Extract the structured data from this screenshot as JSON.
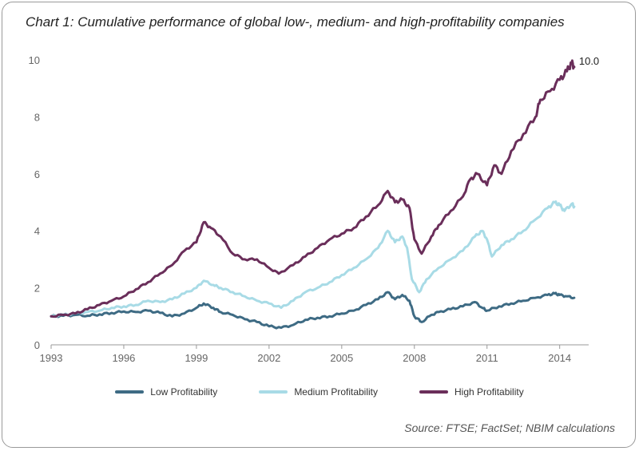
{
  "title": "Chart 1: Cumulative performance of global low-, medium- and high-profitability companies",
  "source": "Source: FTSE; FactSet; NBIM calculations",
  "end_label": "10.0",
  "chart_data": {
    "type": "line",
    "title": "Chart 1: Cumulative performance of global low-, medium- and high-profitability companies",
    "xlabel": "",
    "ylabel": "",
    "xlim": [
      1993,
      2015
    ],
    "ylim": [
      0,
      10
    ],
    "x_ticks": [
      "1993",
      "1996",
      "1999",
      "2002",
      "2005",
      "2008",
      "2011",
      "2014"
    ],
    "y_ticks": [
      "0",
      "2",
      "4",
      "6",
      "8",
      "10"
    ],
    "grid": false,
    "legend_position": "bottom",
    "series": [
      {
        "name": "Low Profitability",
        "color": "#3e6b84",
        "points": [
          [
            1993.0,
            1.0
          ],
          [
            1993.5,
            1.02
          ],
          [
            1994.0,
            1.05
          ],
          [
            1994.5,
            1.02
          ],
          [
            1995.0,
            1.07
          ],
          [
            1995.5,
            1.12
          ],
          [
            1996.0,
            1.17
          ],
          [
            1996.5,
            1.15
          ],
          [
            1997.0,
            1.2
          ],
          [
            1997.5,
            1.12
          ],
          [
            1998.0,
            1.0
          ],
          [
            1998.5,
            1.1
          ],
          [
            1999.0,
            1.3
          ],
          [
            1999.3,
            1.45
          ],
          [
            1999.7,
            1.3
          ],
          [
            2000.0,
            1.15
          ],
          [
            2000.5,
            1.05
          ],
          [
            2001.0,
            0.9
          ],
          [
            2001.5,
            0.8
          ],
          [
            2002.0,
            0.65
          ],
          [
            2002.5,
            0.6
          ],
          [
            2003.0,
            0.7
          ],
          [
            2003.5,
            0.88
          ],
          [
            2004.0,
            0.95
          ],
          [
            2004.5,
            1.0
          ],
          [
            2005.0,
            1.1
          ],
          [
            2005.5,
            1.2
          ],
          [
            2006.0,
            1.4
          ],
          [
            2006.5,
            1.6
          ],
          [
            2006.9,
            1.85
          ],
          [
            2007.2,
            1.6
          ],
          [
            2007.5,
            1.75
          ],
          [
            2007.8,
            1.55
          ],
          [
            2008.0,
            1.0
          ],
          [
            2008.3,
            0.8
          ],
          [
            2008.7,
            1.05
          ],
          [
            2009.0,
            1.15
          ],
          [
            2009.5,
            1.25
          ],
          [
            2010.0,
            1.35
          ],
          [
            2010.5,
            1.5
          ],
          [
            2010.8,
            1.3
          ],
          [
            2011.0,
            1.2
          ],
          [
            2011.5,
            1.35
          ],
          [
            2012.0,
            1.45
          ],
          [
            2012.5,
            1.55
          ],
          [
            2013.0,
            1.65
          ],
          [
            2013.5,
            1.75
          ],
          [
            2013.8,
            1.8
          ],
          [
            2014.0,
            1.75
          ],
          [
            2014.3,
            1.7
          ],
          [
            2014.6,
            1.65
          ]
        ]
      },
      {
        "name": "Medium Profitability",
        "color": "#a8dbe6",
        "points": [
          [
            1993.0,
            1.0
          ],
          [
            1993.5,
            1.05
          ],
          [
            1994.0,
            1.1
          ],
          [
            1994.5,
            1.15
          ],
          [
            1995.0,
            1.2
          ],
          [
            1995.5,
            1.3
          ],
          [
            1996.0,
            1.35
          ],
          [
            1996.5,
            1.4
          ],
          [
            1997.0,
            1.55
          ],
          [
            1997.5,
            1.5
          ],
          [
            1998.0,
            1.6
          ],
          [
            1998.5,
            1.8
          ],
          [
            1999.0,
            2.0
          ],
          [
            1999.3,
            2.25
          ],
          [
            1999.7,
            2.1
          ],
          [
            2000.0,
            2.0
          ],
          [
            2000.5,
            1.85
          ],
          [
            2001.0,
            1.7
          ],
          [
            2001.5,
            1.55
          ],
          [
            2002.0,
            1.45
          ],
          [
            2002.5,
            1.3
          ],
          [
            2003.0,
            1.55
          ],
          [
            2003.5,
            1.85
          ],
          [
            2004.0,
            2.0
          ],
          [
            2004.5,
            2.2
          ],
          [
            2005.0,
            2.45
          ],
          [
            2005.5,
            2.7
          ],
          [
            2006.0,
            3.0
          ],
          [
            2006.5,
            3.4
          ],
          [
            2006.9,
            4.0
          ],
          [
            2007.2,
            3.6
          ],
          [
            2007.5,
            3.8
          ],
          [
            2007.7,
            3.4
          ],
          [
            2007.9,
            2.3
          ],
          [
            2008.2,
            1.85
          ],
          [
            2008.5,
            2.3
          ],
          [
            2009.0,
            2.7
          ],
          [
            2009.5,
            3.0
          ],
          [
            2010.0,
            3.3
          ],
          [
            2010.5,
            3.8
          ],
          [
            2010.8,
            4.0
          ],
          [
            2011.0,
            3.7
          ],
          [
            2011.2,
            3.1
          ],
          [
            2011.6,
            3.5
          ],
          [
            2012.0,
            3.7
          ],
          [
            2012.5,
            4.0
          ],
          [
            2013.0,
            4.4
          ],
          [
            2013.5,
            4.8
          ],
          [
            2013.8,
            5.0
          ],
          [
            2014.0,
            4.9
          ],
          [
            2014.2,
            4.7
          ],
          [
            2014.5,
            4.95
          ],
          [
            2014.6,
            4.85
          ]
        ]
      },
      {
        "name": "High Profitability",
        "color": "#6a2e5a",
        "points": [
          [
            1993.0,
            1.0
          ],
          [
            1993.5,
            1.05
          ],
          [
            1994.0,
            1.1
          ],
          [
            1994.5,
            1.25
          ],
          [
            1995.0,
            1.4
          ],
          [
            1995.5,
            1.55
          ],
          [
            1996.0,
            1.7
          ],
          [
            1996.5,
            1.95
          ],
          [
            1997.0,
            2.2
          ],
          [
            1997.5,
            2.5
          ],
          [
            1998.0,
            2.8
          ],
          [
            1998.5,
            3.3
          ],
          [
            1999.0,
            3.6
          ],
          [
            1999.3,
            4.3
          ],
          [
            1999.6,
            4.1
          ],
          [
            2000.0,
            3.8
          ],
          [
            2000.5,
            3.2
          ],
          [
            2001.0,
            3.0
          ],
          [
            2001.5,
            3.0
          ],
          [
            2002.0,
            2.7
          ],
          [
            2002.4,
            2.5
          ],
          [
            2003.0,
            2.8
          ],
          [
            2003.5,
            3.1
          ],
          [
            2004.0,
            3.4
          ],
          [
            2004.5,
            3.7
          ],
          [
            2005.0,
            3.9
          ],
          [
            2005.5,
            4.1
          ],
          [
            2006.0,
            4.5
          ],
          [
            2006.5,
            4.9
          ],
          [
            2006.9,
            5.4
          ],
          [
            2007.2,
            5.0
          ],
          [
            2007.5,
            5.1
          ],
          [
            2007.8,
            4.8
          ],
          [
            2008.0,
            3.7
          ],
          [
            2008.3,
            3.2
          ],
          [
            2008.7,
            3.8
          ],
          [
            2009.0,
            4.2
          ],
          [
            2009.5,
            4.7
          ],
          [
            2010.0,
            5.2
          ],
          [
            2010.3,
            5.8
          ],
          [
            2010.6,
            6.0
          ],
          [
            2011.0,
            5.6
          ],
          [
            2011.3,
            6.3
          ],
          [
            2011.6,
            6.0
          ],
          [
            2012.0,
            6.8
          ],
          [
            2012.5,
            7.4
          ],
          [
            2013.0,
            8.0
          ],
          [
            2013.2,
            8.6
          ],
          [
            2013.6,
            8.9
          ],
          [
            2014.0,
            9.3
          ],
          [
            2014.3,
            9.6
          ],
          [
            2014.5,
            9.9
          ],
          [
            2014.6,
            9.75
          ]
        ]
      }
    ]
  }
}
